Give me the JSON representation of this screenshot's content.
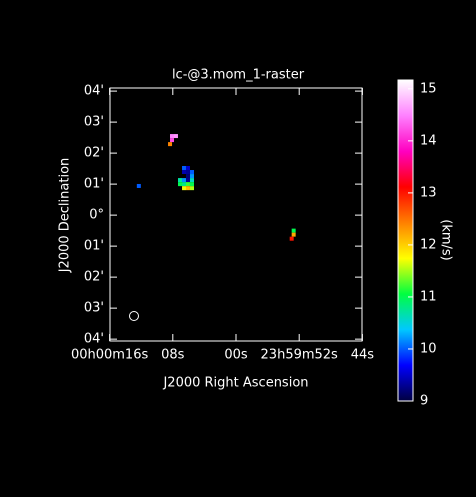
{
  "chart_data": {
    "type": "image",
    "title": "lc-@3.mom_1-raster",
    "xlabel": "J2000 Right Ascension",
    "ylabel": "J2000 Declination",
    "xlim": [
      15.95,
      -15.95
    ],
    "ylim": [
      -4.06,
      4.1
    ],
    "xticks": [
      {
        "value": 16,
        "label": "00h00m16s"
      },
      {
        "value": 8,
        "label": "08s"
      },
      {
        "value": 0,
        "label": "00s"
      },
      {
        "value": -8,
        "label": "23h59m52s"
      },
      {
        "value": -16,
        "label": "44s"
      }
    ],
    "yticks": [
      {
        "value": 4,
        "label": "04'"
      },
      {
        "value": 3,
        "label": "03'"
      },
      {
        "value": 2,
        "label": "02'"
      },
      {
        "value": 1,
        "label": "01'"
      },
      {
        "value": 0,
        "label": "0°"
      },
      {
        "value": -1,
        "label": "01'"
      },
      {
        "value": -2,
        "label": "02'"
      },
      {
        "value": -3,
        "label": "03'"
      },
      {
        "value": -4,
        "label": "04'"
      }
    ],
    "clim": [
      9,
      15.17
    ],
    "cticks": [
      9,
      10,
      11,
      12,
      13,
      14,
      15
    ],
    "colorbar_label": "(km/s)",
    "colormap": [
      "#000040",
      "#0000ff",
      "#00c8ff",
      "#00ff40",
      "#ffff00",
      "#ff8000",
      "#ff0000",
      "#ff00c0",
      "#ff80ff",
      "#ffffff"
    ],
    "pixels": {
      "x": [
        8.1,
        7.6,
        8.1,
        8.35,
        12.3,
        6.58,
        6.08,
        6.58,
        6.08,
        5.57,
        6.08,
        5.57,
        7.09,
        6.58,
        6.08,
        5.57,
        7.09,
        6.58,
        6.08,
        5.57,
        6.58,
        6.08,
        5.57,
        -7.3,
        -7.3,
        -7.05
      ],
      "y": [
        2.55,
        2.55,
        2.42,
        2.29,
        0.94,
        1.52,
        1.52,
        1.39,
        1.39,
        1.39,
        1.26,
        1.26,
        1.13,
        1.13,
        1.13,
        1.13,
        1.0,
        1.0,
        1.0,
        1.0,
        0.87,
        0.87,
        0.87,
        -0.5,
        -0.63,
        -0.76
      ],
      "values": [
        14.5,
        14.6,
        14.2,
        12.4,
        10.0,
        10.0,
        9.5,
        9.4,
        9.3,
        10.0,
        9.2,
        10.2,
        10.7,
        10.2,
        9.3,
        10.6,
        11.0,
        10.8,
        11.2,
        11.0,
        11.7,
        12.1,
        11.5,
        11.0,
        12.2,
        13.0
      ]
    }
  }
}
